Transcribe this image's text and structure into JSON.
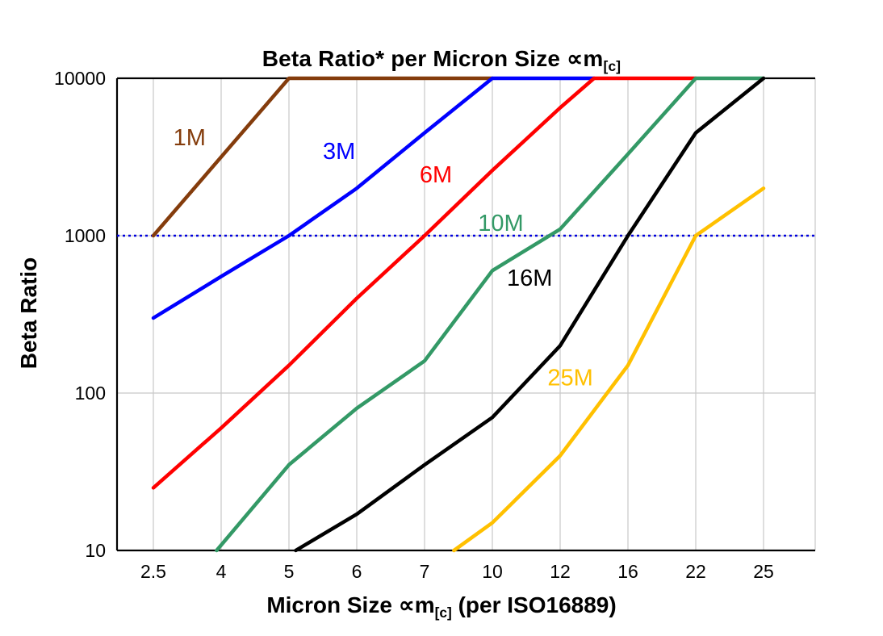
{
  "chart_data": {
    "type": "line",
    "title": {
      "text": "Beta Ratio* per Micron Size ",
      "symbol": "∝m",
      "subscript": "[c]"
    },
    "ylabel": "Beta Ratio",
    "xlabel": {
      "text": "Micron Size ",
      "symbol": "∝m",
      "subscript": "[c]",
      "suffix": " (per ISO16889)"
    },
    "y_scale": "log",
    "ylim": [
      10,
      10000
    ],
    "y_ticks": [
      10,
      100,
      1000,
      10000
    ],
    "y_tick_labels": [
      "10",
      "100",
      "1000",
      "10000"
    ],
    "categories": [
      2.5,
      4,
      5,
      6,
      7,
      10,
      12,
      16,
      22,
      25
    ],
    "x_tick_labels": [
      "2.5",
      "4",
      "5",
      "6",
      "7",
      "10",
      "12",
      "16",
      "22",
      "25"
    ],
    "grid": true,
    "grid_color": "#c8c8c8",
    "reference_line": {
      "y": 1000,
      "color": "#0000dd",
      "style": "dotted"
    },
    "series": [
      {
        "name": "1M",
        "color": "#843c0c",
        "points": [
          [
            2.5,
            1000
          ],
          [
            5,
            10000
          ],
          [
            10,
            10000
          ]
        ],
        "label": {
          "x": 3.3,
          "y": 3750
        }
      },
      {
        "name": "3M",
        "color": "#0000ff",
        "points": [
          [
            2.5,
            300
          ],
          [
            4,
            550
          ],
          [
            5,
            1000
          ],
          [
            6,
            2000
          ],
          [
            7,
            4500
          ],
          [
            10,
            10000
          ],
          [
            14,
            10000
          ]
        ],
        "label": {
          "x": 5.74,
          "y": 3070
        }
      },
      {
        "name": "6M",
        "color": "#ff0000",
        "points": [
          [
            2.5,
            25
          ],
          [
            4,
            60
          ],
          [
            5,
            150
          ],
          [
            6,
            400
          ],
          [
            7,
            1000
          ],
          [
            10,
            2600
          ],
          [
            12,
            6500
          ],
          [
            14,
            10000
          ],
          [
            22,
            10000
          ]
        ],
        "label": {
          "x": 7.5,
          "y": 2180
        }
      },
      {
        "name": "10M",
        "color": "#339966",
        "points": [
          [
            3.9,
            10
          ],
          [
            5,
            35
          ],
          [
            6,
            80
          ],
          [
            7,
            160
          ],
          [
            10,
            600
          ],
          [
            12,
            1100
          ],
          [
            16,
            3300
          ],
          [
            22,
            10000
          ],
          [
            25,
            10000
          ]
        ],
        "label": {
          "x": 10.25,
          "y": 1075
        }
      },
      {
        "name": "16M",
        "color": "#000000",
        "points": [
          [
            5.1,
            10
          ],
          [
            6,
            17
          ],
          [
            7,
            35
          ],
          [
            10,
            70
          ],
          [
            12,
            200
          ],
          [
            16,
            1000
          ],
          [
            22,
            4500
          ],
          [
            25,
            10000
          ]
        ],
        "label": {
          "x": 11.1,
          "y": 480
        }
      },
      {
        "name": "25M",
        "color": "#ffc000",
        "points": [
          [
            8.3,
            10
          ],
          [
            10,
            15
          ],
          [
            12,
            40
          ],
          [
            16,
            150
          ],
          [
            22,
            1000
          ],
          [
            25,
            2000
          ]
        ],
        "label": {
          "x": 12.6,
          "y": 112
        }
      }
    ]
  }
}
